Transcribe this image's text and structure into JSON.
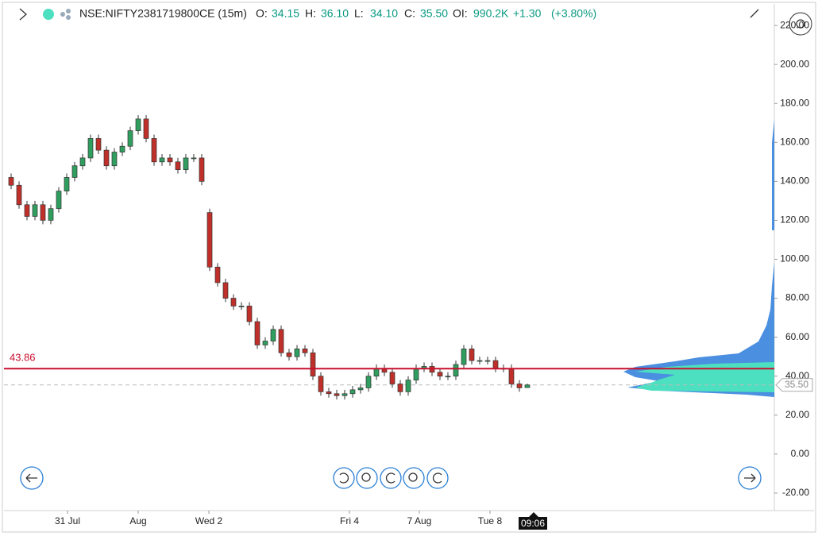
{
  "chart_data": {
    "type": "candlestick",
    "header": {
      "symbol": "NSE:NIFTY2381719800CE (15m)",
      "fields": [
        {
          "label": "O:",
          "value": "34.15"
        },
        {
          "label": "H:",
          "value": "36.10"
        },
        {
          "label": "L:",
          "value": "34.10"
        },
        {
          "label": "C:",
          "value": "35.50"
        },
        {
          "label": "OI:",
          "value": "990.2K"
        }
      ],
      "change": "+1.30",
      "change_pct": "(+3.80%)"
    },
    "series": [
      {
        "name": "open",
        "values": [
          142,
          138,
          128,
          122,
          128,
          120,
          126,
          135,
          142,
          148,
          152,
          162,
          156,
          148,
          155,
          158,
          166,
          172,
          162,
          150,
          152,
          150,
          146,
          152,
          152,
          124,
          96,
          88,
          80,
          76,
          76,
          68,
          56,
          58,
          64,
          52,
          50,
          54,
          52,
          40,
          32,
          31,
          30,
          31,
          33,
          34,
          40,
          44,
          42,
          36,
          32,
          38,
          44,
          45,
          42,
          40,
          40,
          46,
          54,
          48,
          48,
          48,
          44,
          44,
          36,
          34.15
        ]
      },
      {
        "name": "high",
        "values": [
          144,
          140,
          130,
          130,
          130,
          128,
          137,
          144,
          150,
          154,
          164,
          164,
          158,
          157,
          160,
          168,
          174,
          174,
          164,
          154,
          154,
          152,
          154,
          154,
          154,
          126,
          98,
          90,
          82,
          78,
          78,
          70,
          60,
          66,
          66,
          54,
          56,
          56,
          54,
          42,
          34,
          33,
          33,
          35,
          36,
          42,
          46,
          46,
          44,
          38,
          40,
          46,
          47,
          47,
          44,
          42,
          48,
          56,
          56,
          50,
          50,
          50,
          46,
          46,
          38,
          36.1
        ]
      },
      {
        "name": "low",
        "values": [
          136,
          126,
          120,
          120,
          118,
          118,
          124,
          133,
          140,
          146,
          150,
          154,
          146,
          146,
          153,
          156,
          164,
          160,
          148,
          148,
          148,
          144,
          144,
          150,
          138,
          94,
          86,
          78,
          74,
          74,
          66,
          54,
          54,
          56,
          50,
          48,
          48,
          50,
          38,
          30,
          29,
          28,
          28,
          29,
          31,
          32,
          38,
          40,
          34,
          30,
          30,
          36,
          42,
          40,
          38,
          38,
          38,
          44,
          46,
          46,
          46,
          42,
          42,
          34,
          32,
          34.1
        ]
      },
      {
        "name": "close",
        "values": [
          138,
          128,
          122,
          128,
          120,
          126,
          135,
          142,
          148,
          152,
          162,
          156,
          148,
          155,
          158,
          166,
          172,
          162,
          150,
          152,
          150,
          146,
          152,
          152,
          140,
          96,
          88,
          80,
          76,
          76,
          68,
          56,
          58,
          64,
          52,
          50,
          54,
          52,
          40,
          32,
          31,
          30,
          31,
          33,
          34,
          40,
          44,
          42,
          36,
          32,
          38,
          44,
          45,
          42,
          40,
          40,
          46,
          54,
          48,
          48,
          48,
          44,
          44,
          36,
          34,
          35.5
        ]
      }
    ],
    "up_color": "#2f9e5f",
    "down_color": "#c0302a",
    "xlim": [
      -0.9,
      96.1
    ],
    "xticks": [
      {
        "value": 7.1,
        "label": "31 Jul"
      },
      {
        "value": 16,
        "label": "Aug"
      },
      {
        "value": 24.9,
        "label": "Wed 2"
      },
      {
        "value": 42.6,
        "label": "Fri 4"
      },
      {
        "value": 51.4,
        "label": "7 Aug"
      },
      {
        "value": 60.3,
        "label": "Tue 8"
      }
    ],
    "ylim": [
      -29,
      229
    ],
    "yticks": [
      {
        "value": -20,
        "label": "-20.00"
      },
      {
        "value": 0,
        "label": "0.00"
      },
      {
        "value": 20,
        "label": "20.00"
      },
      {
        "value": 40,
        "label": "40.00"
      },
      {
        "value": 60,
        "label": "60.00"
      },
      {
        "value": 80,
        "label": "80.00"
      },
      {
        "value": 100,
        "label": "100.00"
      },
      {
        "value": 120,
        "label": "120.00"
      },
      {
        "value": 140,
        "label": "140.00"
      },
      {
        "value": 160,
        "label": "160.00"
      },
      {
        "value": 180,
        "label": "180.00"
      },
      {
        "value": 200,
        "label": "200.00"
      },
      {
        "value": 220,
        "label": "220.00"
      }
    ],
    "hline": {
      "value": 43.86,
      "color": "#c8102e"
    },
    "last_price": {
      "value": 35.5,
      "label": "35.50"
    },
    "crosshair_time": "09:06"
  }
}
